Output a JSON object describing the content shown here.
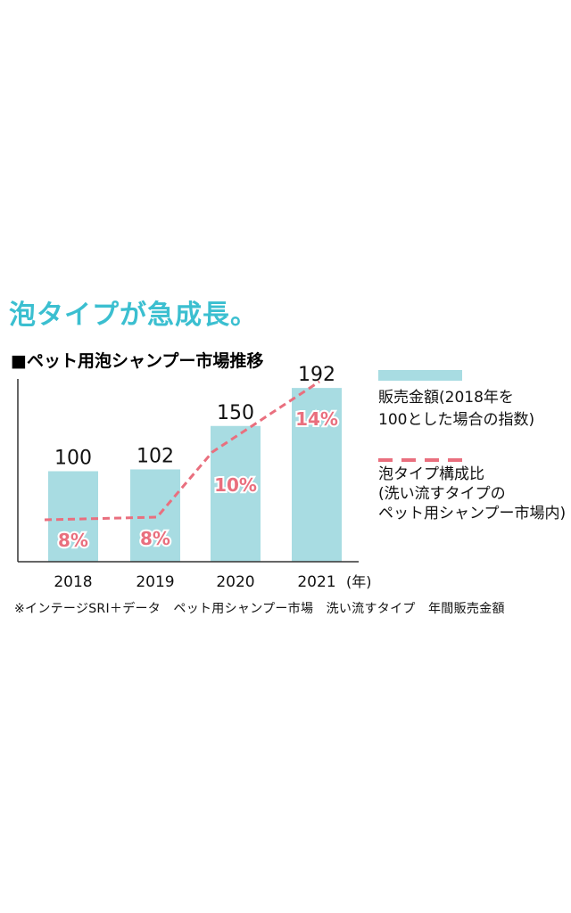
{
  "colors": {
    "accent": "#3bbfd0",
    "bar": "#a8dce2",
    "line": "#e96f7e",
    "axis": "#333333"
  },
  "headline": "泡タイプが急成長。",
  "chart_data": {
    "type": "bar",
    "title": "■ペット用泡シャンプー市場推移",
    "categories": [
      "2018",
      "2019",
      "2020",
      "2021"
    ],
    "x_unit": "(年)",
    "ylim": [
      0,
      200
    ],
    "series": [
      {
        "name": "販売金額(2018年を100とした場合の指数)",
        "type": "bar",
        "values": [
          100,
          102,
          150,
          192
        ],
        "labels": [
          "100",
          "102",
          "150",
          "192"
        ],
        "color": "#a8dce2"
      },
      {
        "name": "泡タイプ構成比(洗い流すタイプのペット用シャンプー市場内)",
        "type": "line",
        "style": "dashed",
        "unit": "%",
        "values": [
          8,
          8,
          10,
          14
        ],
        "labels": [
          "8%",
          "8%",
          "10%",
          "14%"
        ],
        "color": "#e96f7e"
      }
    ],
    "grid": false,
    "legend_position": "right"
  },
  "legend": {
    "bar_label_line1": "販売金額(2018年を",
    "bar_label_line2": "100とした場合の指数)",
    "line_label_line1": "泡タイプ構成比",
    "line_label_line2": "(洗い流すタイプの",
    "line_label_line3": "ペット用シャンプー市場内)"
  },
  "footnote": "※インテージSRI＋データ　ペット用シャンプー市場　洗い流すタイプ　年間販売金額"
}
